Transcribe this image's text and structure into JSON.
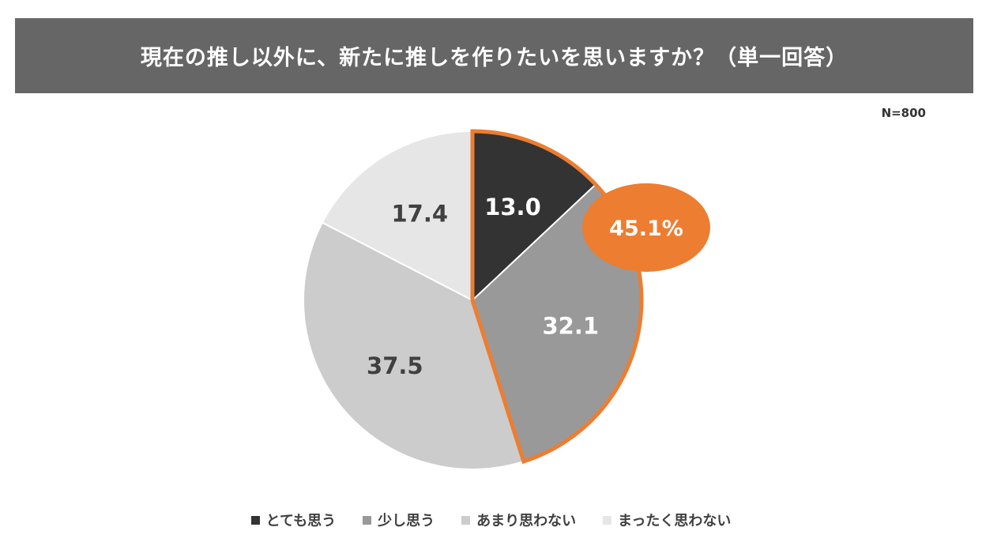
{
  "header": {
    "title": "現在の推し以外に、新たに推しを作りたいを思いますか？（単一回答）"
  },
  "sample_size": "N=800",
  "callout": {
    "label": "45.1%",
    "color": "#ED7D31"
  },
  "chart_data": {
    "type": "pie",
    "title": "現在の推し以外に、新たに推しを作りたいを思いますか？（単一回答）",
    "slices": [
      {
        "name": "とても思う",
        "value": 13.0,
        "label": "13.0",
        "color": "#333333",
        "label_color": "#ffffff"
      },
      {
        "name": "少し思う",
        "value": 32.1,
        "label": "32.1",
        "color": "#999999",
        "label_color": "#ffffff"
      },
      {
        "name": "あまり思わない",
        "value": 37.5,
        "label": "37.5",
        "color": "#CCCCCC",
        "label_color": "#404040"
      },
      {
        "name": "まったく思わない",
        "value": 17.4,
        "label": "17.4",
        "color": "#E6E6E6",
        "label_color": "#404040"
      }
    ],
    "highlighted_slices": [
      "とても思う",
      "少し思う"
    ],
    "highlight_total": "45.1%",
    "legend_position": "bottom"
  },
  "legend": [
    {
      "label": "とても思う",
      "color": "#333333"
    },
    {
      "label": "少し思う",
      "color": "#999999"
    },
    {
      "label": "あまり思わない",
      "color": "#CCCCCC"
    },
    {
      "label": "まったく思わない",
      "color": "#E6E6E6"
    }
  ]
}
